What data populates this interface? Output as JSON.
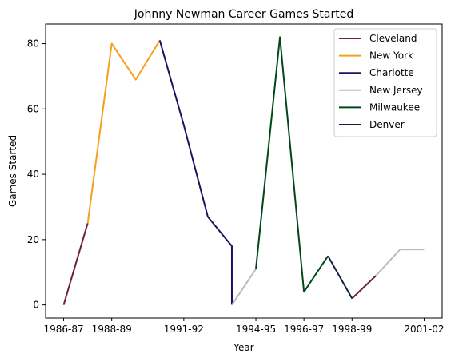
{
  "chart_data": {
    "type": "line",
    "title": "Johnny Newman Career Games Started",
    "xlabel": "Year",
    "ylabel": "Games Started",
    "x_tick_labels": [
      "1986-87",
      "1988-89",
      "1991-92",
      "1994-95",
      "1996-97",
      "1998-99",
      "2001-02"
    ],
    "y_tick_labels": [
      "0",
      "20",
      "40",
      "60",
      "80"
    ],
    "ylim": [
      -4,
      86
    ],
    "grid": false,
    "legend_position": "top-right",
    "series": [
      {
        "name": "Cleveland",
        "color": "#6b2233",
        "points": [
          {
            "x": "1986-87",
            "y": 0
          },
          {
            "x": "1987-88",
            "y": 25
          },
          {
            "x": "1998-99",
            "y": 2
          },
          {
            "x": "1999-00",
            "y": 9
          }
        ],
        "segments": [
          [
            0,
            1
          ],
          [
            2,
            3
          ]
        ]
      },
      {
        "name": "New York",
        "color": "#f5a01a",
        "points": [
          {
            "x": "1987-88",
            "y": 25
          },
          {
            "x": "1988-89",
            "y": 80
          },
          {
            "x": "1989-90",
            "y": 69
          },
          {
            "x": "1990-91",
            "y": 81
          }
        ],
        "segments": [
          [
            0,
            1,
            2,
            3
          ]
        ]
      },
      {
        "name": "Charlotte",
        "color": "#1d1160",
        "points": [
          {
            "x": "1990-91",
            "y": 81
          },
          {
            "x": "1991-92",
            "y": 55
          },
          {
            "x": "1992-93",
            "y": 27
          },
          {
            "x": "1993-94",
            "y": 18
          },
          {
            "x": "1993-94",
            "y": 0
          }
        ],
        "segments": [
          [
            0,
            1,
            2,
            3,
            4
          ]
        ]
      },
      {
        "name": "New Jersey",
        "color": "#bbbbbb",
        "points": [
          {
            "x": "1993-94",
            "y": 0
          },
          {
            "x": "1994-95",
            "y": 11
          },
          {
            "x": "1999-00",
            "y": 9
          },
          {
            "x": "2000-01",
            "y": 17
          },
          {
            "x": "2001-02",
            "y": 17
          }
        ],
        "segments": [
          [
            0,
            1
          ],
          [
            2,
            3,
            4
          ]
        ]
      },
      {
        "name": "Milwaukee",
        "color": "#00471b",
        "points": [
          {
            "x": "1994-95",
            "y": 11
          },
          {
            "x": "1995-96",
            "y": 82
          },
          {
            "x": "1996-97",
            "y": 4
          },
          {
            "x": "1997-98",
            "y": 15
          }
        ],
        "segments": [
          [
            0,
            1,
            2,
            3
          ]
        ]
      },
      {
        "name": "Denver",
        "color": "#0e2240",
        "points": [
          {
            "x": "1997-98",
            "y": 15
          },
          {
            "x": "1998-99",
            "y": 2
          }
        ],
        "segments": [
          [
            0,
            1
          ]
        ]
      }
    ]
  }
}
